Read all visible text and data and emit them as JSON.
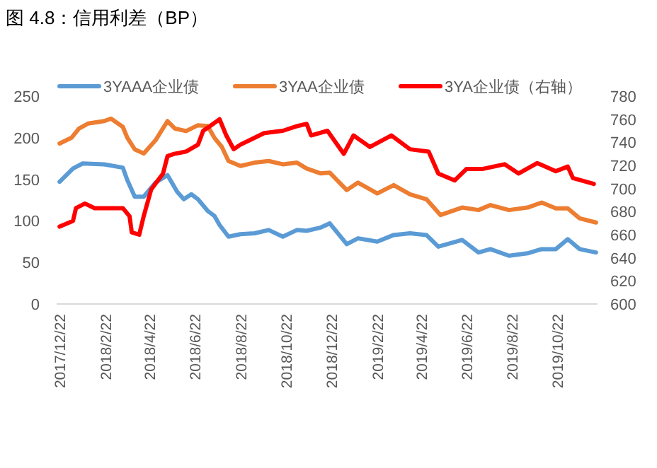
{
  "chart_data": {
    "type": "line",
    "title": "图 4.8：信用利差（BP）",
    "xlim": [
      "2017-12-18",
      "2019-12-15"
    ],
    "xticks": [
      {
        "value": "2017-12-22",
        "label": "2017/12/22"
      },
      {
        "value": "2018-02-22",
        "label": "2018/2/22"
      },
      {
        "value": "2018-04-22",
        "label": "2018/4/22"
      },
      {
        "value": "2018-06-22",
        "label": "2018/6/22"
      },
      {
        "value": "2018-08-22",
        "label": "2018/8/22"
      },
      {
        "value": "2018-10-22",
        "label": "2018/10/22"
      },
      {
        "value": "2018-12-22",
        "label": "2018/12/22"
      },
      {
        "value": "2019-02-22",
        "label": "2019/2/22"
      },
      {
        "value": "2019-04-22",
        "label": "2019/4/22"
      },
      {
        "value": "2019-06-22",
        "label": "2019/6/22"
      },
      {
        "value": "2019-08-22",
        "label": "2019/8/22"
      },
      {
        "value": "2019-10-22",
        "label": "2019/10/22"
      }
    ],
    "ylim": [
      0,
      250
    ],
    "yticks": [
      0,
      50,
      100,
      150,
      200,
      250
    ],
    "y2lim": [
      600,
      780
    ],
    "y2ticks": [
      600,
      620,
      640,
      660,
      680,
      700,
      720,
      740,
      760,
      780
    ],
    "legend": "top",
    "grid": false,
    "marker": "none",
    "line_style": "solid",
    "series": [
      {
        "name": "3YAAA企业债",
        "color": "#5b9bd5",
        "x": [
          "2017-12-22",
          "2018-01-09",
          "2018-01-22",
          "2018-02-20",
          "2018-03-17",
          "2018-03-23",
          "2018-04-02",
          "2018-04-14",
          "2018-04-30",
          "2018-05-16",
          "2018-05-29",
          "2018-06-07",
          "2018-06-17",
          "2018-06-26",
          "2018-07-09",
          "2018-07-18",
          "2018-07-25",
          "2018-08-06",
          "2018-08-22",
          "2018-09-10",
          "2018-09-29",
          "2018-10-18",
          "2018-11-06",
          "2018-11-19",
          "2018-12-08",
          "2018-12-20",
          "2019-01-12",
          "2019-01-27",
          "2019-02-22",
          "2019-03-16",
          "2019-04-07",
          "2019-04-29",
          "2019-05-15",
          "2019-06-16",
          "2019-07-08",
          "2019-07-24",
          "2019-08-18",
          "2019-09-12",
          "2019-10-01",
          "2019-10-20",
          "2019-11-05",
          "2019-11-21",
          "2019-12-13"
        ],
        "values": [
          147,
          163,
          169,
          168,
          164,
          149,
          129,
          129,
          146,
          155,
          135,
          126,
          132,
          126,
          112,
          106,
          95,
          81,
          84,
          85,
          89,
          81,
          89,
          88,
          92,
          97,
          72,
          79,
          75,
          83,
          85,
          83,
          69,
          77,
          62,
          66,
          58,
          61,
          66,
          66,
          78,
          66,
          62
        ]
      },
      {
        "name": "3YAA企业债",
        "color": "#ed7d31",
        "x": [
          "2017-12-22",
          "2018-01-07",
          "2018-01-17",
          "2018-01-29",
          "2018-02-20",
          "2018-03-01",
          "2018-03-17",
          "2018-03-23",
          "2018-04-02",
          "2018-04-14",
          "2018-04-30",
          "2018-05-16",
          "2018-05-26",
          "2018-06-10",
          "2018-06-26",
          "2018-07-09",
          "2018-07-18",
          "2018-07-28",
          "2018-08-06",
          "2018-08-22",
          "2018-09-10",
          "2018-09-29",
          "2018-10-18",
          "2018-11-06",
          "2018-11-19",
          "2018-12-08",
          "2018-12-20",
          "2019-01-12",
          "2019-01-27",
          "2019-02-22",
          "2019-03-16",
          "2019-04-07",
          "2019-04-29",
          "2019-05-18",
          "2019-06-16",
          "2019-07-08",
          "2019-07-24",
          "2019-08-18",
          "2019-09-12",
          "2019-10-01",
          "2019-10-20",
          "2019-11-05",
          "2019-11-21",
          "2019-12-13"
        ],
        "values": [
          193,
          200,
          211,
          217,
          220,
          223,
          213,
          200,
          186,
          181,
          197,
          220,
          211,
          208,
          215,
          214,
          200,
          189,
          172,
          166,
          170,
          172,
          168,
          170,
          163,
          157,
          158,
          137,
          146,
          133,
          143,
          132,
          126,
          107,
          116,
          113,
          119,
          113,
          116,
          122,
          115,
          115,
          103,
          98
        ]
      },
      {
        "name": "3YA企业债（右轴）",
        "color": "#ff0000",
        "axis": "y2",
        "x": [
          "2017-12-22",
          "2018-01-09",
          "2018-01-13",
          "2018-01-25",
          "2018-02-07",
          "2018-02-26",
          "2018-03-17",
          "2018-03-26",
          "2018-03-29",
          "2018-04-08",
          "2018-04-14",
          "2018-04-24",
          "2018-05-03",
          "2018-05-10",
          "2018-05-16",
          "2018-05-25",
          "2018-06-10",
          "2018-06-26",
          "2018-07-03",
          "2018-07-12",
          "2018-07-25",
          "2018-08-03",
          "2018-08-13",
          "2018-08-22",
          "2018-09-04",
          "2018-09-23",
          "2018-10-18",
          "2018-11-06",
          "2018-11-19",
          "2018-11-25",
          "2018-12-17",
          "2019-01-08",
          "2019-01-21",
          "2019-02-12",
          "2019-03-13",
          "2019-04-07",
          "2019-05-02",
          "2019-05-15",
          "2019-06-06",
          "2019-06-22",
          "2019-07-14",
          "2019-08-12",
          "2019-08-31",
          "2019-09-25",
          "2019-10-20",
          "2019-11-05",
          "2019-11-12",
          "2019-12-10"
        ],
        "values": [
          667,
          672,
          683,
          687,
          683,
          683,
          683,
          676,
          662,
          660,
          676,
          699,
          707,
          713,
          728,
          730,
          732,
          738,
          750,
          754,
          760,
          746,
          734,
          738,
          742,
          748,
          750,
          754,
          756,
          746,
          750,
          730,
          746,
          736,
          746,
          734,
          732,
          713,
          707,
          717,
          717,
          721,
          713,
          722,
          715,
          719,
          709,
          704
        ]
      }
    ]
  }
}
